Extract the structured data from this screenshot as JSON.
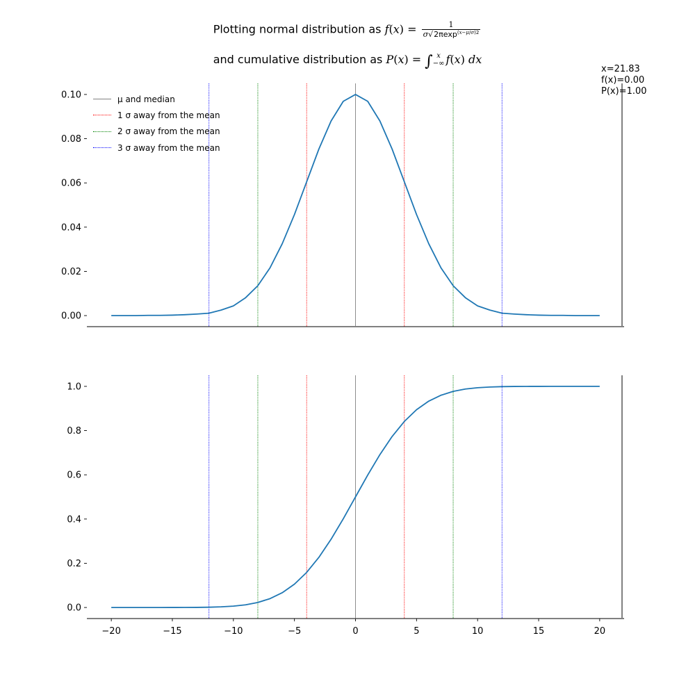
{
  "title": {
    "line1_prefix": "Plotting normal distribution as",
    "line2_prefix": "and cumulative distribution as"
  },
  "readout": {
    "x": "x=21.83",
    "fx": "f(x)=0.00",
    "px": "P(x)=1.00"
  },
  "legend_labels": [
    "μ and median",
    "1 σ away from the mean",
    "2 σ away from the mean",
    "3 σ away from the mean"
  ],
  "colors": {
    "curve": "#1f77b4",
    "mean": "#808080",
    "sigma1": "#ff0000",
    "sigma2": "#008000",
    "sigma3": "#0000ff",
    "cursor": "#808080"
  },
  "chart_data": [
    {
      "type": "line",
      "title": "",
      "xlabel": "",
      "ylabel": "",
      "xlim": [
        -22,
        22
      ],
      "ylim": [
        -0.005,
        0.105
      ],
      "yticks": [
        0.0,
        0.02,
        0.04,
        0.06,
        0.08,
        0.1
      ],
      "ytick_labels": [
        "0.00",
        "0.02",
        "0.04",
        "0.06",
        "0.08",
        "0.10"
      ],
      "x": [
        -20,
        -19,
        -18,
        -17,
        -16,
        -15,
        -14,
        -13,
        -12,
        -11,
        -10,
        -9,
        -8,
        -7,
        -6,
        -5,
        -4,
        -3,
        -2,
        -1,
        0,
        1,
        2,
        3,
        4,
        5,
        6,
        7,
        8,
        9,
        10,
        11,
        12,
        13,
        14,
        15,
        16,
        17,
        18,
        19,
        20
      ],
      "series": [
        {
          "values": [
            0.0,
            0.0,
            0.0,
            0.0001,
            0.0001,
            0.0002,
            0.0004,
            0.0007,
            0.0011,
            0.0025,
            0.0044,
            0.0081,
            0.0135,
            0.0216,
            0.0325,
            0.0457,
            0.0605,
            0.0753,
            0.088,
            0.0969,
            0.1,
            0.0969,
            0.088,
            0.0753,
            0.0605,
            0.0457,
            0.0325,
            0.0216,
            0.0135,
            0.0081,
            0.0044,
            0.0025,
            0.0011,
            0.0007,
            0.0004,
            0.0002,
            0.0001,
            0.0001,
            0.0,
            0.0,
            0.0
          ]
        }
      ],
      "vlines": [
        {
          "x": 0,
          "kind": "mean"
        },
        {
          "x": -4,
          "kind": "sigma1"
        },
        {
          "x": 4,
          "kind": "sigma1"
        },
        {
          "x": -8,
          "kind": "sigma2"
        },
        {
          "x": 8,
          "kind": "sigma2"
        },
        {
          "x": -12,
          "kind": "sigma3"
        },
        {
          "x": 12,
          "kind": "sigma3"
        }
      ],
      "cursor_x": 21.83,
      "legend": "top-left",
      "grid": false
    },
    {
      "type": "line",
      "title": "",
      "xlabel": "",
      "ylabel": "",
      "xlim": [
        -22,
        22
      ],
      "ylim": [
        -0.05,
        1.05
      ],
      "xticks": [
        -20,
        -15,
        -10,
        -5,
        0,
        5,
        10,
        15,
        20
      ],
      "xtick_labels": [
        "−20",
        "−15",
        "−10",
        "−5",
        "0",
        "5",
        "10",
        "15",
        "20"
      ],
      "yticks": [
        0.0,
        0.2,
        0.4,
        0.6,
        0.8,
        1.0
      ],
      "ytick_labels": [
        "0.0",
        "0.2",
        "0.4",
        "0.6",
        "0.8",
        "1.0"
      ],
      "x": [
        -20,
        -19,
        -18,
        -17,
        -16,
        -15,
        -14,
        -13,
        -12,
        -11,
        -10,
        -9,
        -8,
        -7,
        -6,
        -5,
        -4,
        -3,
        -2,
        -1,
        0,
        1,
        2,
        3,
        4,
        5,
        6,
        7,
        8,
        9,
        10,
        11,
        12,
        13,
        14,
        15,
        16,
        17,
        18,
        19,
        20
      ],
      "series": [
        {
          "values": [
            0.0,
            0.0,
            0.0,
            0.0,
            0.0,
            0.0001,
            0.0002,
            0.0005,
            0.0013,
            0.003,
            0.0062,
            0.0122,
            0.0228,
            0.0401,
            0.0668,
            0.1056,
            0.1587,
            0.2266,
            0.3085,
            0.4013,
            0.5,
            0.5987,
            0.6915,
            0.7734,
            0.8413,
            0.8944,
            0.9332,
            0.9599,
            0.9772,
            0.9878,
            0.9938,
            0.997,
            0.9987,
            0.9995,
            0.9998,
            0.9999,
            1.0,
            1.0,
            1.0,
            1.0,
            1.0
          ]
        }
      ],
      "vlines": [
        {
          "x": 0,
          "kind": "mean"
        },
        {
          "x": -4,
          "kind": "sigma1"
        },
        {
          "x": 4,
          "kind": "sigma1"
        },
        {
          "x": -8,
          "kind": "sigma2"
        },
        {
          "x": 8,
          "kind": "sigma2"
        },
        {
          "x": -12,
          "kind": "sigma3"
        },
        {
          "x": 12,
          "kind": "sigma3"
        }
      ],
      "cursor_x": 21.83,
      "grid": false
    }
  ]
}
